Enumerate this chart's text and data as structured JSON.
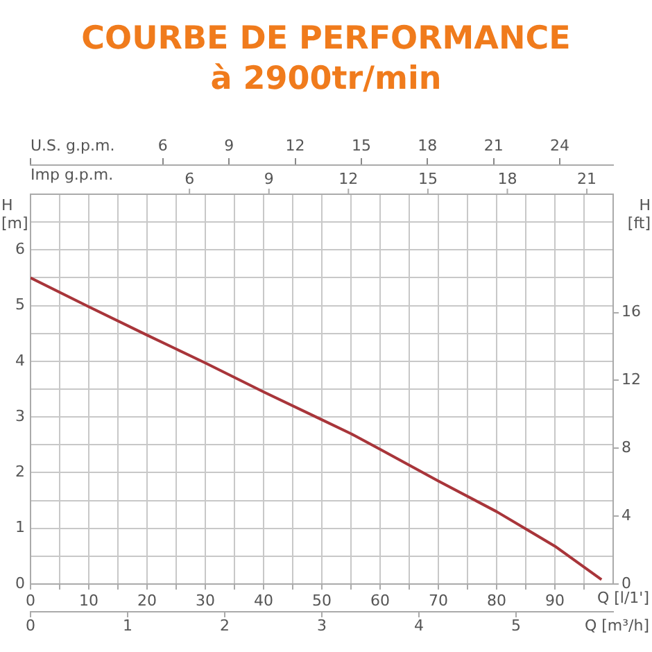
{
  "chart_data": {
    "type": "line",
    "title": "COURBE DE PERFORMANCE",
    "subtitle": "à 2900tr/min",
    "xlabel": "Q [l/1']",
    "x2label": "U.S. g.p.m.",
    "ylabel": "H [m]",
    "y2label": "H [ft]",
    "x": [
      0,
      10,
      20,
      30,
      40,
      50,
      55,
      60,
      70,
      80,
      90,
      98
    ],
    "series": [
      {
        "color": "#a8353a",
        "values": [
          5.5,
          4.98,
          4.47,
          3.97,
          3.45,
          2.95,
          2.7,
          2.42,
          1.85,
          1.3,
          0.68,
          0.08
        ]
      }
    ],
    "xlim": [
      0,
      100
    ],
    "xticks": [
      0,
      {
        "value": 5,
        "label": null
      },
      10,
      {
        "value": 15,
        "label": null
      },
      20,
      {
        "value": 25,
        "label": null
      },
      30,
      {
        "value": 35,
        "label": null
      },
      40,
      {
        "value": 45,
        "label": null
      },
      50,
      {
        "value": 55,
        "label": null
      },
      60,
      {
        "value": 65,
        "label": null
      },
      70,
      {
        "value": 75,
        "label": null
      },
      80,
      {
        "value": 85,
        "label": null
      },
      90,
      {
        "value": 95,
        "label": null
      }
    ],
    "ylim": [
      0,
      7
    ],
    "yticks": [
      0,
      {
        "value": 0.5,
        "label": null
      },
      1,
      {
        "value": 1.5,
        "label": null
      },
      2,
      {
        "value": 2.5,
        "label": null
      },
      3,
      {
        "value": 3.5,
        "label": null
      },
      4,
      {
        "value": 4.5,
        "label": null
      },
      5,
      {
        "value": 5.5,
        "label": null
      },
      6,
      {
        "value": 6.5,
        "label": null
      },
      {
        "value": 7,
        "label": null
      }
    ],
    "y2lim": [
      0,
      22.97
    ],
    "y2ticks": [
      0,
      4,
      8,
      12,
      16
    ],
    "x2lim": [
      0,
      26.42
    ],
    "x2ticks": [
      {
        "value": 0,
        "label": null
      },
      6,
      9,
      12,
      15,
      18,
      21,
      24
    ],
    "annotations": [
      "Imp g.p.m.",
      "6",
      "9",
      "12",
      "15",
      "18",
      "21",
      "Q [m³/h]",
      "0",
      "1",
      "2",
      "3",
      "4",
      "5"
    ],
    "grid": true,
    "marker": "none",
    "line_style": "solid",
    "legend": false
  }
}
